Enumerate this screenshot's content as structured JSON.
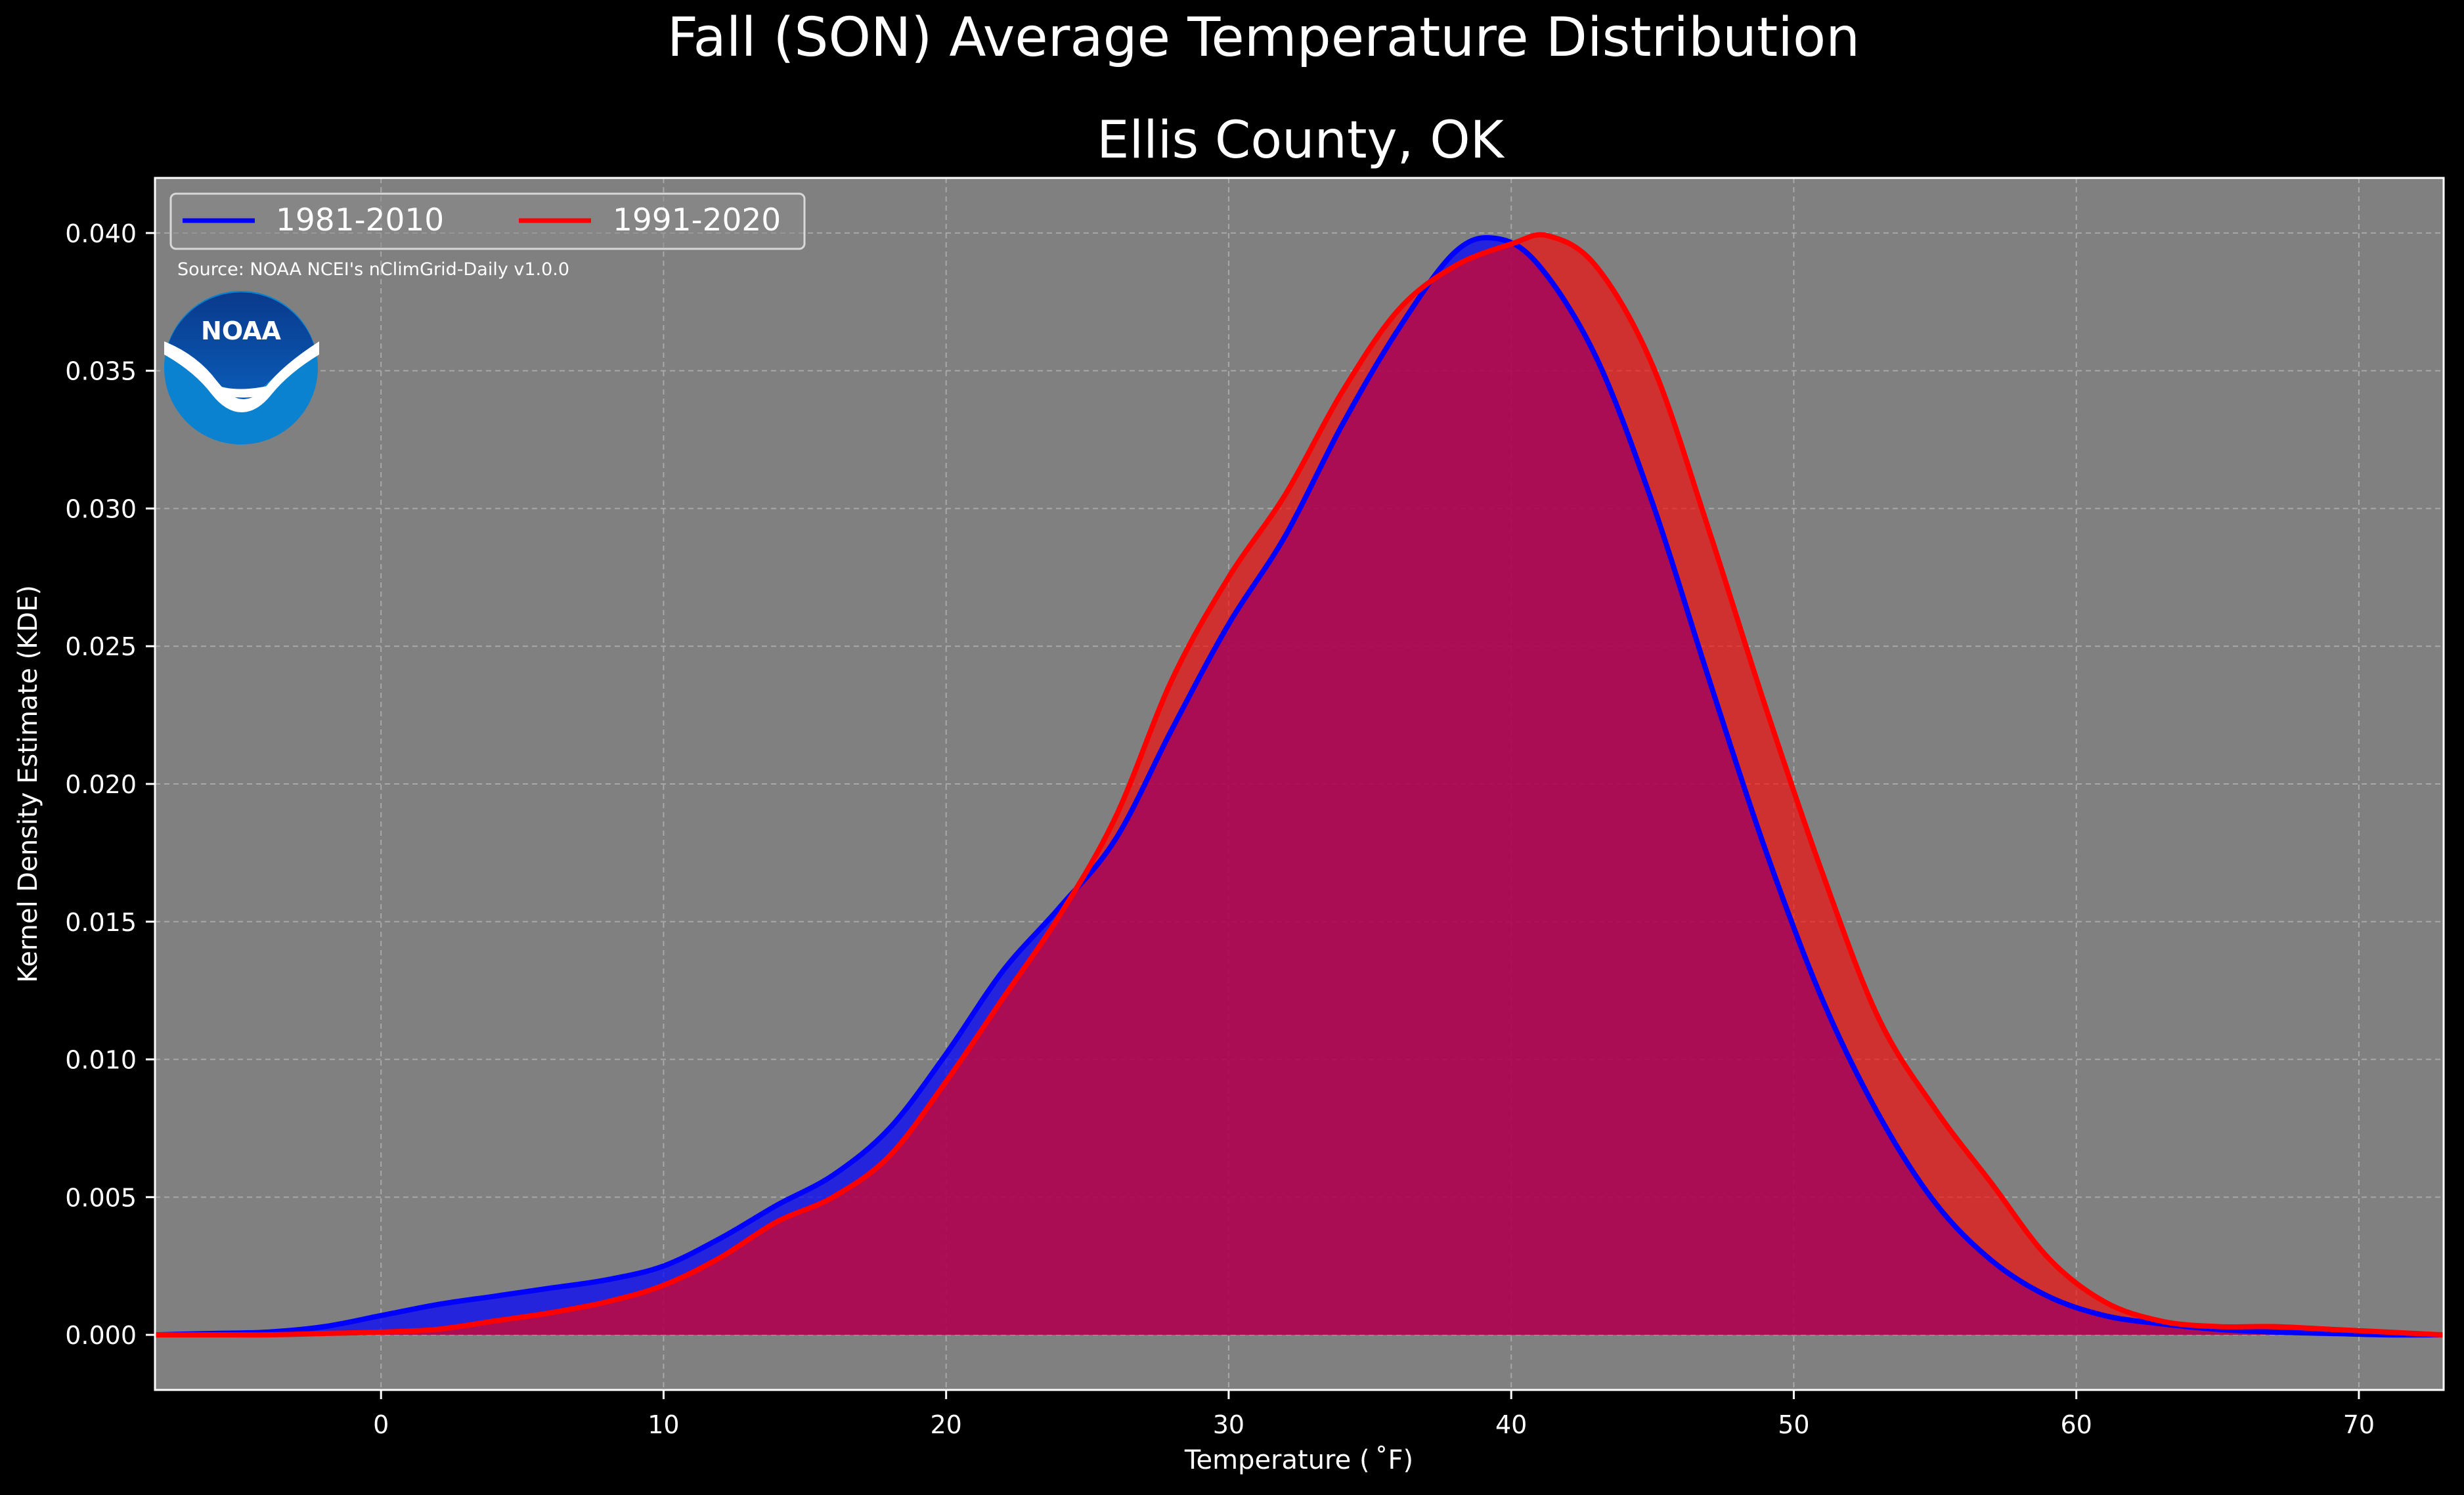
{
  "chart_data": {
    "type": "area",
    "suptitle": "Fall (SON) Average Temperature Distribution",
    "title": "Ellis County, OK",
    "xlabel": "Temperature ($^\\circ$F)",
    "xlabel_display": "Temperature ( ˚F)",
    "ylabel": "Kernel Density Estimate (KDE)",
    "xlim": [
      -8,
      73
    ],
    "ylim": [
      -0.002,
      0.042
    ],
    "x_ticks": [
      0,
      10,
      20,
      30,
      40,
      50,
      60,
      70
    ],
    "x_tick_labels": [
      "0",
      "10",
      "20",
      "30",
      "40",
      "50",
      "60",
      "70"
    ],
    "y_ticks": [
      0.0,
      0.005,
      0.01,
      0.015,
      0.02,
      0.025,
      0.03,
      0.035,
      0.04
    ],
    "y_tick_labels": [
      "0.000",
      "0.005",
      "0.010",
      "0.015",
      "0.020",
      "0.025",
      "0.030",
      "0.035",
      "0.040"
    ],
    "grid": true,
    "legend_position": "top-left",
    "source_note": "Source: NOAA NCEI's nClimGrid-Daily v1.0.0",
    "logo_text": "NOAA",
    "background_color": "#000000",
    "plot_background_color": "#808080",
    "series": [
      {
        "name": "1981-2010",
        "color": "#0000ff",
        "fill_color": "#3838c8",
        "x": [
          -8,
          -6,
          -4,
          -2,
          0,
          2,
          4,
          6,
          8,
          10,
          12,
          14,
          16,
          18,
          20,
          22,
          24,
          26,
          28,
          30,
          32,
          34,
          36,
          38,
          39.5,
          41,
          43,
          45,
          47,
          49,
          51,
          53,
          55,
          57,
          59,
          61,
          63,
          65,
          67,
          69,
          71,
          73
        ],
        "y": [
          0.0,
          5e-05,
          0.0001,
          0.0003,
          0.0007,
          0.0011,
          0.0014,
          0.0017,
          0.002,
          0.0025,
          0.0035,
          0.0047,
          0.0058,
          0.0075,
          0.0102,
          0.0132,
          0.0155,
          0.018,
          0.022,
          0.0258,
          0.029,
          0.033,
          0.0365,
          0.0393,
          0.0398,
          0.0388,
          0.0355,
          0.0302,
          0.0238,
          0.0176,
          0.0122,
          0.008,
          0.0048,
          0.0027,
          0.0014,
          0.0007,
          0.0004,
          0.0002,
          0.0001,
          5e-05,
          0.0,
          0.0
        ]
      },
      {
        "name": "1991-2020",
        "color": "#ff0000",
        "fill_color": "#cc2828",
        "x": [
          -8,
          -6,
          -4,
          -2,
          0,
          2,
          4,
          6,
          8,
          10,
          12,
          14,
          16,
          18,
          20,
          22,
          24,
          26,
          28,
          30,
          32,
          34,
          36,
          38,
          40,
          41.3,
          43,
          45,
          47,
          49,
          51,
          53,
          55,
          57,
          59,
          61,
          63,
          65,
          67,
          69,
          71,
          73
        ],
        "y": [
          0.0,
          0.0,
          0.0,
          5e-05,
          0.0001,
          0.0002,
          0.0005,
          0.0008,
          0.0012,
          0.0018,
          0.0028,
          0.0041,
          0.005,
          0.0065,
          0.0092,
          0.0122,
          0.0152,
          0.0188,
          0.0238,
          0.0275,
          0.0305,
          0.0342,
          0.0372,
          0.0388,
          0.0396,
          0.0399,
          0.0388,
          0.0352,
          0.0292,
          0.0228,
          0.0168,
          0.0115,
          0.0082,
          0.0055,
          0.0028,
          0.0012,
          0.0005,
          0.0003,
          0.0003,
          0.0002,
          0.0001,
          0.0
        ]
      }
    ],
    "overlap_fill_color": "#9b1f5a"
  }
}
